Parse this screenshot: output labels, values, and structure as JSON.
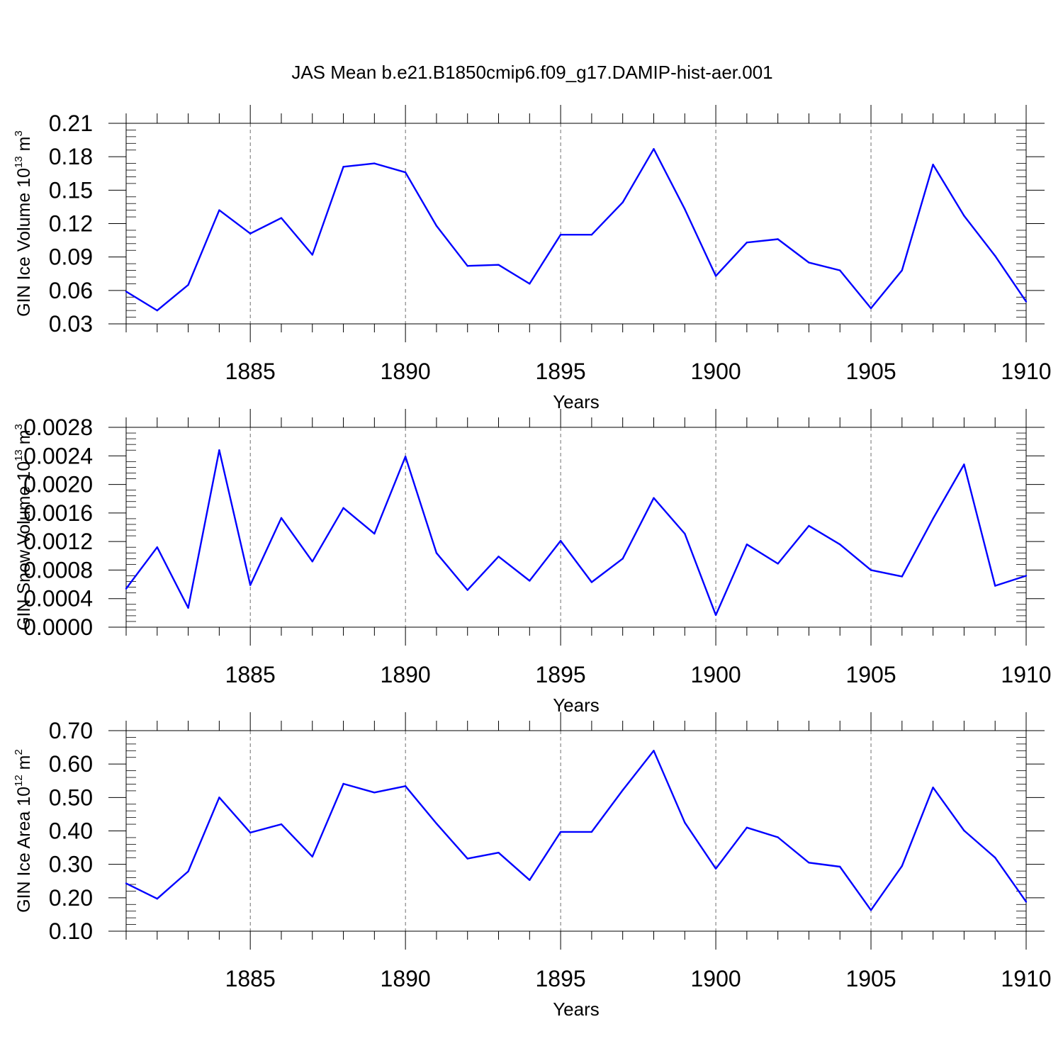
{
  "title": "JAS Mean b.e21.B1850cmip6.f09_g17.DAMIP-hist-aer.001",
  "colors": {
    "line": "#0000ff",
    "axis": "#000000",
    "grid": "#000000"
  },
  "chart_data": [
    {
      "type": "line",
      "ylabel": {
        "base": "GIN Ice Volume 10",
        "exp": "13",
        "unit": " m",
        "unit_exp": "3"
      },
      "xlabel": "Years",
      "xlim": [
        1881,
        1910
      ],
      "ylim": [
        0.03,
        0.21
      ],
      "yticks": [
        "0.03",
        "0.06",
        "0.09",
        "0.12",
        "0.15",
        "0.18",
        "0.21"
      ],
      "xticks": [
        "1885",
        "1890",
        "1895",
        "1900",
        "1905",
        "1910"
      ],
      "grid": "vertical dashed at major x ticks",
      "x": [
        1881,
        1882,
        1883,
        1884,
        1885,
        1886,
        1887,
        1888,
        1889,
        1890,
        1891,
        1892,
        1893,
        1894,
        1895,
        1896,
        1897,
        1898,
        1899,
        1900,
        1901,
        1902,
        1903,
        1904,
        1905,
        1906,
        1907,
        1908,
        1909,
        1910
      ],
      "values": [
        0.059,
        0.042,
        0.065,
        0.132,
        0.111,
        0.125,
        0.092,
        0.171,
        0.174,
        0.166,
        0.118,
        0.082,
        0.083,
        0.066,
        0.11,
        0.11,
        0.139,
        0.187,
        0.133,
        0.073,
        0.103,
        0.106,
        0.085,
        0.078,
        0.044,
        0.078,
        0.173,
        0.127,
        0.091,
        0.05
      ]
    },
    {
      "type": "line",
      "ylabel": {
        "base": "GIN Snow Volume 10",
        "exp": "13",
        "unit": " m",
        "unit_exp": "3"
      },
      "xlabel": "Years",
      "xlim": [
        1881,
        1910
      ],
      "ylim": [
        0.0,
        0.0028
      ],
      "yticks": [
        "0.0000",
        "0.0004",
        "0.0008",
        "0.0012",
        "0.0016",
        "0.0020",
        "0.0024",
        "0.0028"
      ],
      "xticks": [
        "1885",
        "1890",
        "1895",
        "1900",
        "1905",
        "1910"
      ],
      "grid": "vertical dashed at major x ticks",
      "x": [
        1881,
        1882,
        1883,
        1884,
        1885,
        1886,
        1887,
        1888,
        1889,
        1890,
        1891,
        1892,
        1893,
        1894,
        1895,
        1896,
        1897,
        1898,
        1899,
        1900,
        1901,
        1902,
        1903,
        1904,
        1905,
        1906,
        1907,
        1908,
        1909,
        1910
      ],
      "values": [
        0.00054,
        0.00112,
        0.00027,
        0.00248,
        0.00059,
        0.00153,
        0.00092,
        0.00167,
        0.00131,
        0.00239,
        0.00104,
        0.00052,
        0.00099,
        0.00065,
        0.00121,
        0.00063,
        0.00096,
        0.00181,
        0.00131,
        0.00017,
        0.00116,
        0.00089,
        0.00142,
        0.00116,
        0.0008,
        0.00071,
        0.00152,
        0.00228,
        0.00058,
        0.00072
      ]
    },
    {
      "type": "line",
      "ylabel": {
        "base": "GIN Ice Area 10",
        "exp": "12",
        "unit": " m",
        "unit_exp": "2"
      },
      "xlabel": "Years",
      "xlim": [
        1881,
        1910
      ],
      "ylim": [
        0.1,
        0.7
      ],
      "yticks": [
        "0.10",
        "0.20",
        "0.30",
        "0.40",
        "0.50",
        "0.60",
        "0.70"
      ],
      "xticks": [
        "1885",
        "1890",
        "1895",
        "1900",
        "1905",
        "1910"
      ],
      "grid": "vertical dashed at major x ticks",
      "x": [
        1881,
        1882,
        1883,
        1884,
        1885,
        1886,
        1887,
        1888,
        1889,
        1890,
        1891,
        1892,
        1893,
        1894,
        1895,
        1896,
        1897,
        1898,
        1899,
        1900,
        1901,
        1902,
        1903,
        1904,
        1905,
        1906,
        1907,
        1908,
        1909,
        1910
      ],
      "values": [
        0.243,
        0.197,
        0.279,
        0.5,
        0.395,
        0.42,
        0.323,
        0.541,
        0.515,
        0.534,
        0.422,
        0.317,
        0.335,
        0.253,
        0.397,
        0.397,
        0.522,
        0.64,
        0.425,
        0.287,
        0.41,
        0.381,
        0.305,
        0.293,
        0.163,
        0.295,
        0.53,
        0.401,
        0.32,
        0.188
      ]
    }
  ]
}
